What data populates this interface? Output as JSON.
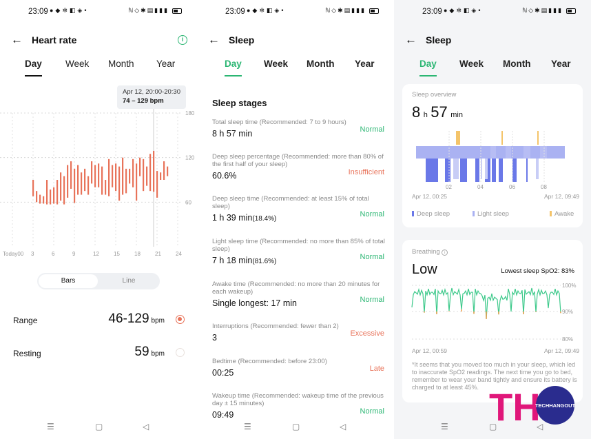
{
  "status_bar": {
    "time": "23:09"
  },
  "heart": {
    "title": "Heart rate",
    "tabs": [
      "Day",
      "Week",
      "Month",
      "Year"
    ],
    "tooltip": {
      "time": "Apr 12, 20:00-20:30",
      "range": "74 – 129 bpm"
    },
    "chart_data": {
      "type": "bar",
      "y_ticks": [
        "180",
        "120",
        "60"
      ],
      "x_ticks": [
        "Today00",
        "3",
        "6",
        "9",
        "12",
        "15",
        "18",
        "21",
        "24"
      ],
      "ylim": [
        0,
        180
      ],
      "bars": [
        [
          3.0,
          90,
          68
        ],
        [
          3.5,
          75,
          60
        ],
        [
          4.0,
          70,
          58
        ],
        [
          4.5,
          68,
          58
        ],
        [
          5.0,
          90,
          57
        ],
        [
          5.5,
          77,
          57
        ],
        [
          6.0,
          80,
          58
        ],
        [
          6.5,
          90,
          57
        ],
        [
          7.0,
          100,
          62
        ],
        [
          7.5,
          95,
          57
        ],
        [
          8.0,
          110,
          66
        ],
        [
          8.5,
          115,
          78
        ],
        [
          9.0,
          105,
          59
        ],
        [
          9.5,
          110,
          70
        ],
        [
          10.0,
          100,
          70
        ],
        [
          10.5,
          105,
          75
        ],
        [
          11.0,
          95,
          70
        ],
        [
          11.5,
          115,
          85
        ],
        [
          12.0,
          110,
          80
        ],
        [
          12.5,
          112,
          80
        ],
        [
          13.0,
          108,
          70
        ],
        [
          13.5,
          90,
          70
        ],
        [
          14.0,
          118,
          68
        ],
        [
          14.5,
          110,
          80
        ],
        [
          15.0,
          112,
          75
        ],
        [
          15.5,
          108,
          62
        ],
        [
          16.0,
          120,
          70
        ],
        [
          16.5,
          105,
          72
        ],
        [
          17.0,
          105,
          85
        ],
        [
          17.5,
          118,
          80
        ],
        [
          18.0,
          112,
          62
        ],
        [
          18.5,
          120,
          95
        ],
        [
          19.0,
          118,
          75
        ],
        [
          19.5,
          108,
          82
        ],
        [
          20.0,
          125,
          75
        ],
        [
          20.5,
          129,
          74
        ],
        [
          21.0,
          102,
          66
        ],
        [
          21.5,
          100,
          90
        ],
        [
          22.0,
          115,
          90
        ],
        [
          22.5,
          108,
          95
        ]
      ],
      "selected_hour": 20.5,
      "color": "#e8735a"
    },
    "view_toggle": {
      "bars": "Bars",
      "line": "Line"
    },
    "range": {
      "label": "Range",
      "value": "46-129",
      "unit": "bpm"
    },
    "resting": {
      "label": "Resting",
      "value": "59",
      "unit": "bpm"
    }
  },
  "sleep_detail": {
    "title": "Sleep",
    "tabs": [
      "Day",
      "Week",
      "Month",
      "Year"
    ],
    "section": "Sleep stages",
    "items": [
      {
        "desc": "Total sleep time (Recommended: 7 to 9 hours)",
        "value": "8 h 57 min",
        "sub": "",
        "status": "Normal",
        "good": true
      },
      {
        "desc": "Deep sleep percentage (Recommended: more than 80% of the first half of your sleep)",
        "value": "60.6%",
        "sub": "",
        "status": "Insufficient",
        "good": false
      },
      {
        "desc": "Deep sleep time (Recommended: at least 15% of total sleep)",
        "value": "1 h 39 min",
        "sub": "(18.4%)",
        "status": "Normal",
        "good": true
      },
      {
        "desc": "Light sleep time (Recommended: no more than 85% of total sleep)",
        "value": "7 h 18 min",
        "sub": "(81.6%)",
        "status": "Normal",
        "good": true
      },
      {
        "desc": "Awake time (Recommended: no more than 20 minutes for each wakeup)",
        "value": "Single longest: 17 min",
        "sub": "",
        "status": "Normal",
        "good": true
      },
      {
        "desc": "Interruptions (Recommended: fewer than 2)",
        "value": "3",
        "sub": "",
        "status": "Excessive",
        "good": false
      },
      {
        "desc": "Bedtime (Recommended: before 23:00)",
        "value": "00:25",
        "sub": "",
        "status": "Late",
        "good": false
      },
      {
        "desc": "Wakeup time (Recommended: wakeup time of the previous day ± 15 minutes)",
        "value": "09:49",
        "sub": "",
        "status": "Normal",
        "good": true
      }
    ]
  },
  "sleep_overview": {
    "title": "Sleep",
    "tabs": [
      "Day",
      "Week",
      "Month",
      "Year"
    ],
    "card_label": "Sleep overview",
    "total_h": "8",
    "h_unit": "h",
    "total_m": "57",
    "m_unit": "min",
    "time_ticks": [
      "02",
      "04",
      "06",
      "08"
    ],
    "start": "Apr 12, 00:25",
    "end": "Apr 12, 09:49",
    "legend": {
      "deep": "Deep sleep",
      "light": "Light sleep",
      "awake": "Awake"
    },
    "colors": {
      "deep": "#6a78e8",
      "light": "#aab2f2",
      "awake": "#f4c46a"
    },
    "breathing": {
      "label": "Breathing",
      "level": "Low",
      "spo2_label": "Lowest sleep SpO2: ",
      "spo2_value": "83%",
      "y_ticks": [
        "100%",
        "90%",
        "80%"
      ],
      "start": "Apr 12, 00:59",
      "end": "Apr 12, 09:49",
      "note": "*It seems that you moved too much in your sleep, which led to inaccurate SpO2 readings. The next time you go to bed, remember to wear your band tightly and ensure its battery is charged to at least 45%."
    }
  },
  "watermark": {
    "letters": "TH",
    "brand": "TECHHANGOUT"
  }
}
